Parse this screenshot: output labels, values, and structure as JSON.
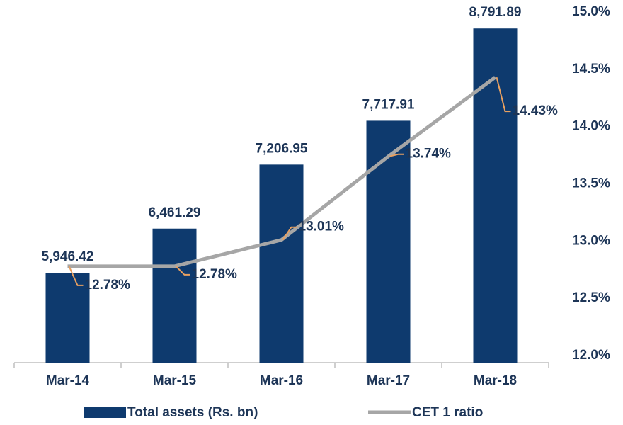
{
  "chart_data": {
    "type": "bar_line",
    "categories": [
      "Mar-14",
      "Mar-15",
      "Mar-16",
      "Mar-17",
      "Mar-18"
    ],
    "series": [
      {
        "name": "Total assets (Rs. bn)",
        "type": "bar",
        "color": "#0e3a6e",
        "values": [
          5946.42,
          6461.29,
          7206.95,
          7717.91,
          8791.89
        ],
        "value_labels": [
          "5,946.42",
          "6,461.29",
          "7,206.95",
          "7,717.91",
          "8,791.89"
        ]
      },
      {
        "name": "CET 1 ratio",
        "type": "line",
        "axis": "y2",
        "color": "#a6a6a6",
        "values": [
          12.78,
          12.78,
          13.01,
          13.74,
          14.43
        ],
        "value_labels": [
          "12.78%",
          "12.78%",
          "13.01%",
          "13.74%",
          "14.43%"
        ]
      }
    ],
    "ylim": [
      4900,
      9000
    ],
    "y2lim": [
      12,
      15
    ],
    "y2ticks": [
      {
        "value": 12,
        "label": "12.0%"
      },
      {
        "value": 12.5,
        "label": "12.5%"
      },
      {
        "value": 13,
        "label": "13.0%"
      },
      {
        "value": 13.5,
        "label": "13.5%"
      },
      {
        "value": 14,
        "label": "14.0%"
      },
      {
        "value": 14.5,
        "label": "14.5%"
      },
      {
        "value": 15,
        "label": "15.0%"
      }
    ],
    "grid": false,
    "legend": "bottom"
  }
}
